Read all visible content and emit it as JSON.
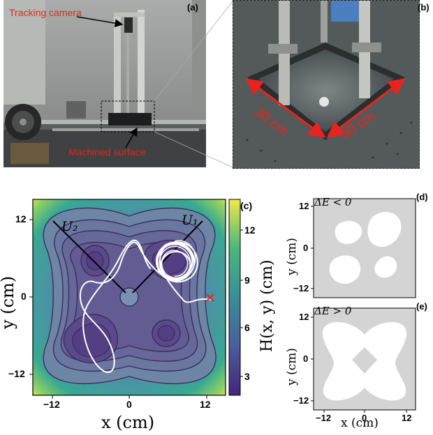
{
  "panel_a": {
    "label": "(a)",
    "tracking_camera_label": "Tracking camera",
    "machined_surface_label": "Machined surface"
  },
  "panel_b": {
    "label": "(b)",
    "dim1": "30 cm",
    "dim2": "30 cm"
  },
  "panel_c": {
    "label": "(c)",
    "xlabel": "x (cm)",
    "ylabel": "y (cm)",
    "xticks": [
      "−12",
      "0",
      "12"
    ],
    "yticks": [
      "12",
      "0",
      "−12"
    ],
    "u1": "U₁",
    "u2": "U₂",
    "colorbar_label": "H(x, y) (cm)",
    "colorbar_ticks": [
      "12",
      "9",
      "6",
      "3"
    ]
  },
  "panel_d": {
    "label": "(d)",
    "condition": "ΔE < 0",
    "ylabel": "y (cm)",
    "yticks": [
      "12",
      "0",
      "−12"
    ]
  },
  "panel_e": {
    "label": "(e)",
    "condition": "ΔE > 0",
    "ylabel": "y (cm)",
    "yticks": [
      "12",
      "0",
      "−12"
    ],
    "xticks": [
      "−12",
      "0",
      "12"
    ],
    "xlabel": "x (cm)"
  },
  "colors": {
    "annotation_red": "#e8231f",
    "forbidden_gray": "#d4d4d4",
    "contour_line": "#3b2c5c",
    "trajectory": "#ffffff"
  }
}
